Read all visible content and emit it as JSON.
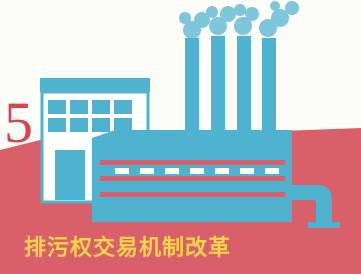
{
  "number": "5",
  "caption": "排污权交易机制改革"
}
